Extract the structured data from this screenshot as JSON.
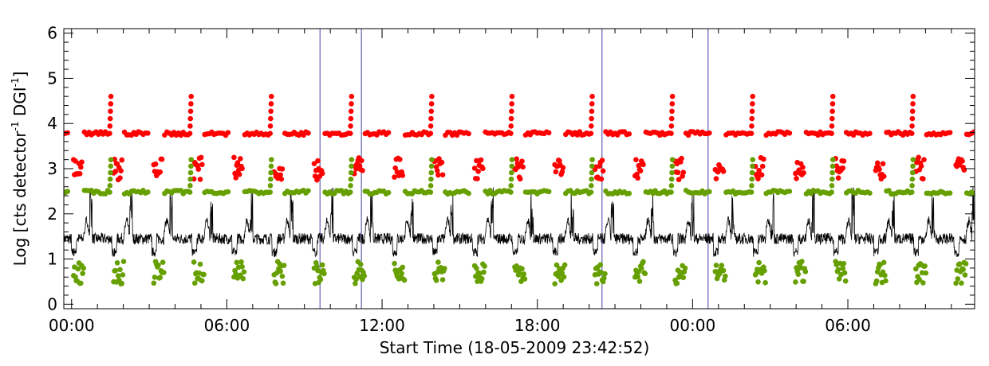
{
  "chart_data": {
    "type": "scatter",
    "title": "",
    "xlabel": "Start Time (18-05-2009 23:42:52)",
    "ylabel": {
      "main": "Log [cts detector",
      "sup1": "-1",
      "mid": " DGI",
      "sup2": "-1",
      "end": "]"
    },
    "ylim": [
      -0.1,
      6.1
    ],
    "xlim_hours": [
      -0.3,
      34.9
    ],
    "x_tick_labels": [
      {
        "value": 0,
        "label": "00:00"
      },
      {
        "value": 6,
        "label": "06:00"
      },
      {
        "value": 12,
        "label": "12:00"
      },
      {
        "value": 18,
        "label": "18:00"
      },
      {
        "value": 24,
        "label": "00:00"
      },
      {
        "value": 30,
        "label": "06:00"
      }
    ],
    "y_tick_labels": [
      "0",
      "1",
      "2",
      "3",
      "4",
      "5",
      "6"
    ],
    "vertical_markers_hours": [
      9.6,
      11.2,
      20.5,
      24.6
    ],
    "orbit_period_hours": 1.55,
    "series": [
      {
        "color": "#ff0000",
        "kind": "points",
        "baseline": 3.78,
        "dip_level": 2.9,
        "peak_level": 4.6
      },
      {
        "color": "#66a000",
        "kind": "points",
        "baseline": 2.48,
        "dip_level": 0.6,
        "peak_level": 3.2
      },
      {
        "color": "#000000",
        "kind": "line",
        "baseline": 1.45,
        "dip_level": 1.15,
        "peak_level": 2.6
      }
    ],
    "colors": {
      "axes": "#000000",
      "marker_lines": "#4040a0"
    }
  }
}
